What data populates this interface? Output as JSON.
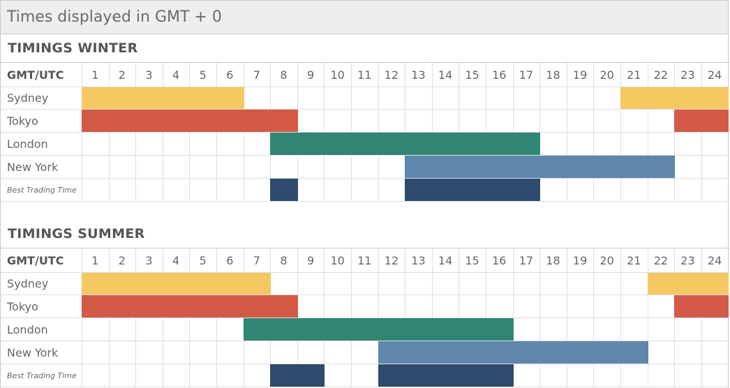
{
  "header": {
    "title": "Times displayed in GMT + 0"
  },
  "colors": {
    "sydney": "#f5c862",
    "tokyo": "#d45a48",
    "london": "#318673",
    "new_york": "#5f87ad",
    "best": "#2e4a6e"
  },
  "chart_data": [
    {
      "type": "table",
      "title": "TIMINGS WINTER",
      "header_label": "GMT/UTC",
      "hours": [
        "1",
        "2",
        "3",
        "4",
        "5",
        "6",
        "7",
        "8",
        "9",
        "10",
        "11",
        "12",
        "13",
        "14",
        "15",
        "16",
        "17",
        "18",
        "19",
        "20",
        "21",
        "22",
        "23",
        "24"
      ],
      "rows": [
        {
          "label": "Sydney",
          "color_key": "sydney",
          "segments": [
            [
              1,
              6
            ],
            [
              21,
              24
            ]
          ]
        },
        {
          "label": "Tokyo",
          "color_key": "tokyo",
          "segments": [
            [
              1,
              8
            ],
            [
              23,
              24
            ]
          ]
        },
        {
          "label": "London",
          "color_key": "london",
          "segments": [
            [
              8,
              17
            ]
          ]
        },
        {
          "label": "New York",
          "color_key": "new_york",
          "segments": [
            [
              13,
              22
            ]
          ]
        },
        {
          "label": "Best Trading Time",
          "color_key": "best",
          "italic": true,
          "segments": [
            [
              8,
              8
            ],
            [
              13,
              17
            ]
          ]
        }
      ]
    },
    {
      "type": "table",
      "title": "TIMINGS SUMMER",
      "header_label": "GMT/UTC",
      "hours": [
        "1",
        "2",
        "3",
        "4",
        "5",
        "6",
        "7",
        "8",
        "9",
        "10",
        "11",
        "12",
        "13",
        "14",
        "15",
        "16",
        "17",
        "18",
        "19",
        "20",
        "21",
        "22",
        "23",
        "24"
      ],
      "rows": [
        {
          "label": "Sydney",
          "color_key": "sydney",
          "segments": [
            [
              1,
              7
            ],
            [
              22,
              24
            ]
          ]
        },
        {
          "label": "Tokyo",
          "color_key": "tokyo",
          "segments": [
            [
              1,
              8
            ],
            [
              23,
              24
            ]
          ]
        },
        {
          "label": "London",
          "color_key": "london",
          "segments": [
            [
              7,
              16
            ]
          ]
        },
        {
          "label": "New York",
          "color_key": "new_york",
          "segments": [
            [
              12,
              21
            ]
          ]
        },
        {
          "label": "Best Trading Time",
          "color_key": "best",
          "italic": true,
          "segments": [
            [
              8,
              9
            ],
            [
              12,
              16
            ]
          ]
        }
      ]
    }
  ]
}
